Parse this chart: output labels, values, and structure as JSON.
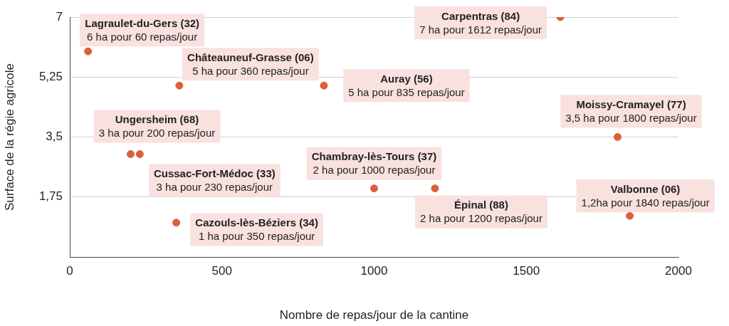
{
  "chart_data": {
    "type": "scatter",
    "xlabel": "Nombre de repas/jour de la cantine",
    "ylabel": "Surface de la régie agricole",
    "x": [
      60,
      360,
      835,
      1612,
      200,
      230,
      1800,
      1000,
      1200,
      1840,
      350
    ],
    "values": [
      6,
      5,
      5,
      7,
      3,
      3,
      3.5,
      2,
      2,
      1.2,
      1
    ],
    "color": "#d9603b",
    "marker": "circle",
    "grid": "y",
    "xlim": [
      0,
      2000
    ],
    "xticks": [
      0,
      500,
      1000,
      1500,
      2000
    ],
    "ylim": [
      0,
      7
    ],
    "yticks": [
      {
        "value": 1.75,
        "label": "1,75"
      },
      {
        "value": 3.5,
        "label": "3,5"
      },
      {
        "value": 5.25,
        "label": "5,25"
      },
      7
    ],
    "annotations": [
      {
        "text": "Lagraulet-du-Gers (32)\n6 ha pour 60 repas/jour",
        "x": 60,
        "y": 6
      },
      {
        "text": "Châteauneuf-Grasse (06)\n5 ha pour 360 repas/jour",
        "x": 360,
        "y": 5
      },
      {
        "text": "Auray (56)\n5 ha pour 835 repas/jour",
        "x": 835,
        "y": 5
      },
      {
        "text": "Carpentras (84)\n7 ha pour 1612 repas/jour",
        "x": 1612,
        "y": 7
      },
      {
        "text": "Ungersheim (68)\n3 ha pour 200 repas/jour",
        "x": 200,
        "y": 3
      },
      {
        "text": "Cussac-Fort-Médoc (33)\n3 ha pour 230 repas/jour",
        "x": 230,
        "y": 3
      },
      {
        "text": "Moissy-Cramayel (77)\n3,5 ha pour 1800 repas/jour",
        "x": 1800,
        "y": 3.5
      },
      {
        "text": "Chambray-lès-Tours (37)\n2 ha pour 1000 repas/jour",
        "x": 1000,
        "y": 2
      },
      {
        "text": "Épinal (88)\n2 ha pour 1200 repas/jour",
        "x": 1200,
        "y": 2
      },
      {
        "text": "Valbonne (06)\n1,2ha pour 1840 repas/jour",
        "x": 1840,
        "y": 1.2
      },
      {
        "text": "Cazouls-lès-Béziers (34)\n1 ha pour 350 repas/jour",
        "x": 350,
        "y": 1
      }
    ]
  }
}
